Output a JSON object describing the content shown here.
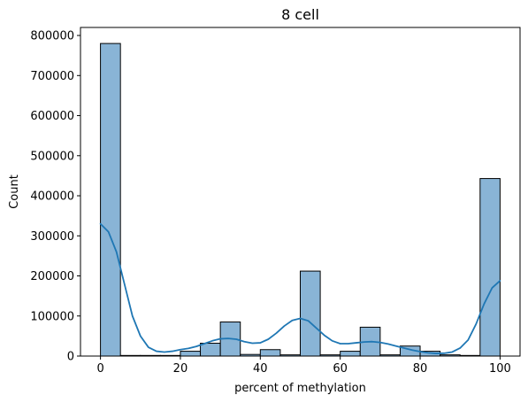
{
  "chart_data": {
    "type": "bar",
    "title": "8 cell",
    "xlabel": "percent of methylation",
    "ylabel": "Count",
    "xlim": [
      -5,
      105
    ],
    "ylim": [
      0,
      820000
    ],
    "x_ticks": [
      0,
      20,
      40,
      60,
      80,
      100
    ],
    "y_ticks": [
      0,
      100000,
      200000,
      300000,
      400000,
      500000,
      600000,
      700000,
      800000
    ],
    "bin_edges": [
      0,
      5,
      10,
      15,
      20,
      25,
      30,
      35,
      40,
      45,
      50,
      55,
      60,
      65,
      70,
      75,
      80,
      85,
      90,
      95,
      100
    ],
    "values": [
      780000,
      1500,
      1500,
      1500,
      12000,
      32000,
      85000,
      4000,
      16000,
      3000,
      212000,
      3000,
      12000,
      72000,
      3000,
      25000,
      12000,
      3000,
      1500,
      443000
    ],
    "kde": {
      "x": [
        0,
        2,
        4,
        6,
        8,
        10,
        12,
        14,
        16,
        18,
        20,
        22,
        24,
        26,
        28,
        30,
        32,
        34,
        36,
        38,
        40,
        42,
        44,
        46,
        48,
        50,
        52,
        54,
        56,
        58,
        60,
        62,
        64,
        66,
        68,
        70,
        72,
        74,
        76,
        78,
        80,
        82,
        84,
        86,
        88,
        90,
        92,
        94,
        96,
        98,
        100
      ],
      "y": [
        330000,
        310000,
        260000,
        180000,
        100000,
        50000,
        22000,
        12000,
        10000,
        12000,
        16000,
        19000,
        24000,
        31000,
        38000,
        43000,
        44000,
        42000,
        36000,
        32000,
        33000,
        42000,
        57000,
        75000,
        89000,
        94000,
        88000,
        70000,
        52000,
        38000,
        31000,
        31000,
        33000,
        35000,
        36000,
        34000,
        30000,
        25000,
        20000,
        15000,
        11000,
        8000,
        6500,
        7000,
        10000,
        20000,
        40000,
        80000,
        130000,
        170000,
        188000
      ]
    },
    "grid": false,
    "bar_color": "#89b4d6",
    "line_color": "#1f77b4"
  }
}
